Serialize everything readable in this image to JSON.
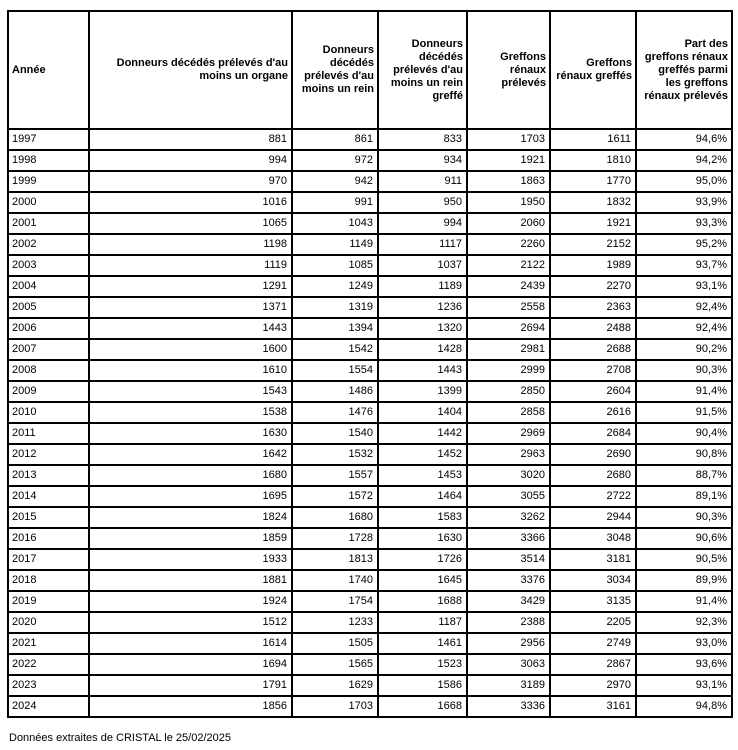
{
  "chart_data": {
    "type": "table",
    "columns": [
      "Année",
      "Donneurs décédés prélevés d'au moins un organe",
      "Donneurs décédés prélevés d'au moins un rein",
      "Donneurs décédés prélevés d'au moins un rein greffé",
      "Greffons rénaux prélevés",
      "Greffons rénaux greffés",
      "Part des greffons rénaux greffés parmi les greffons rénaux prélevés"
    ],
    "rows": [
      [
        "1997",
        "881",
        "861",
        "833",
        "1703",
        "1611",
        "94,6%"
      ],
      [
        "1998",
        "994",
        "972",
        "934",
        "1921",
        "1810",
        "94,2%"
      ],
      [
        "1999",
        "970",
        "942",
        "911",
        "1863",
        "1770",
        "95,0%"
      ],
      [
        "2000",
        "1016",
        "991",
        "950",
        "1950",
        "1832",
        "93,9%"
      ],
      [
        "2001",
        "1065",
        "1043",
        "994",
        "2060",
        "1921",
        "93,3%"
      ],
      [
        "2002",
        "1198",
        "1149",
        "1117",
        "2260",
        "2152",
        "95,2%"
      ],
      [
        "2003",
        "1119",
        "1085",
        "1037",
        "2122",
        "1989",
        "93,7%"
      ],
      [
        "2004",
        "1291",
        "1249",
        "1189",
        "2439",
        "2270",
        "93,1%"
      ],
      [
        "2005",
        "1371",
        "1319",
        "1236",
        "2558",
        "2363",
        "92,4%"
      ],
      [
        "2006",
        "1443",
        "1394",
        "1320",
        "2694",
        "2488",
        "92,4%"
      ],
      [
        "2007",
        "1600",
        "1542",
        "1428",
        "2981",
        "2688",
        "90,2%"
      ],
      [
        "2008",
        "1610",
        "1554",
        "1443",
        "2999",
        "2708",
        "90,3%"
      ],
      [
        "2009",
        "1543",
        "1486",
        "1399",
        "2850",
        "2604",
        "91,4%"
      ],
      [
        "2010",
        "1538",
        "1476",
        "1404",
        "2858",
        "2616",
        "91,5%"
      ],
      [
        "2011",
        "1630",
        "1540",
        "1442",
        "2969",
        "2684",
        "90,4%"
      ],
      [
        "2012",
        "1642",
        "1532",
        "1452",
        "2963",
        "2690",
        "90,8%"
      ],
      [
        "2013",
        "1680",
        "1557",
        "1453",
        "3020",
        "2680",
        "88,7%"
      ],
      [
        "2014",
        "1695",
        "1572",
        "1464",
        "3055",
        "2722",
        "89,1%"
      ],
      [
        "2015",
        "1824",
        "1680",
        "1583",
        "3262",
        "2944",
        "90,3%"
      ],
      [
        "2016",
        "1859",
        "1728",
        "1630",
        "3366",
        "3048",
        "90,6%"
      ],
      [
        "2017",
        "1933",
        "1813",
        "1726",
        "3514",
        "3181",
        "90,5%"
      ],
      [
        "2018",
        "1881",
        "1740",
        "1645",
        "3376",
        "3034",
        "89,9%"
      ],
      [
        "2019",
        "1924",
        "1754",
        "1688",
        "3429",
        "3135",
        "91,4%"
      ],
      [
        "2020",
        "1512",
        "1233",
        "1187",
        "2388",
        "2205",
        "92,3%"
      ],
      [
        "2021",
        "1614",
        "1505",
        "1461",
        "2956",
        "2749",
        "93,0%"
      ],
      [
        "2022",
        "1694",
        "1565",
        "1523",
        "3063",
        "2867",
        "93,6%"
      ],
      [
        "2023",
        "1791",
        "1629",
        "1586",
        "3189",
        "2970",
        "93,1%"
      ],
      [
        "2024",
        "1856",
        "1703",
        "1668",
        "3336",
        "3161",
        "94,8%"
      ]
    ],
    "source_note": "Données extraites de CRISTAL le 25/02/2025",
    "text_color": "#000000",
    "border_color": "#000000",
    "background_color": "#ffffff"
  }
}
